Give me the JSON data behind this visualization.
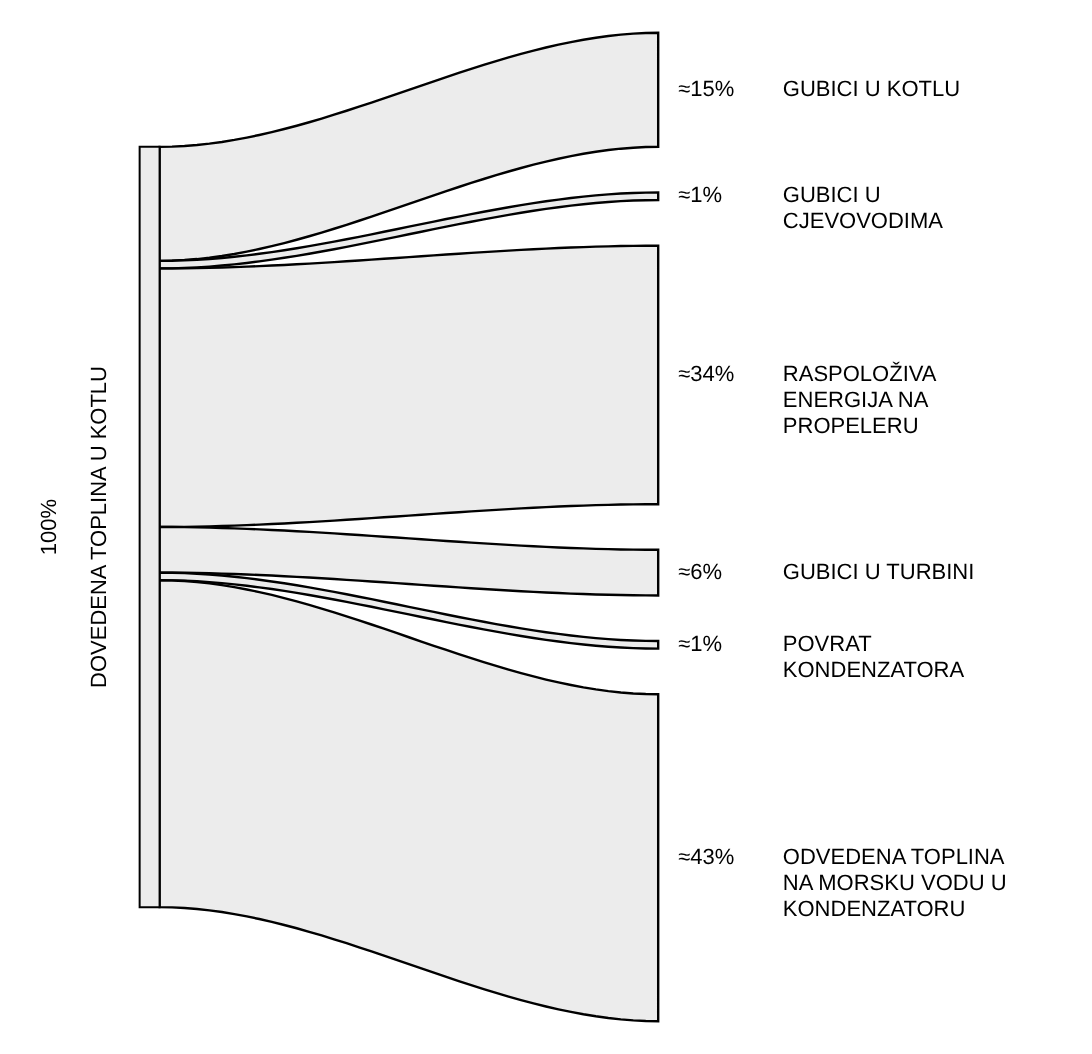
{
  "chart_data": {
    "type": "other",
    "categories": [
      "DOVEDENA TOPLINA U KOTLU",
      "GUBICI U KOTLU",
      "GUBICI U CJEVOVODIMA",
      "RASPOLOŽIVA ENERGIJA NA PROPELERU",
      "GUBICI U TURBINI",
      "POVRAT KONDENZATORA",
      "ODVEDENA TOPLINA NA MORSKU VODU U KONDENZATORU"
    ],
    "values": [
      100,
      15,
      1,
      34,
      6,
      1,
      43
    ],
    "value_labels": [
      "100%",
      "≈15%",
      "≈1%",
      "≈34%",
      "≈6%",
      "≈1%",
      "≈43%"
    ]
  }
}
